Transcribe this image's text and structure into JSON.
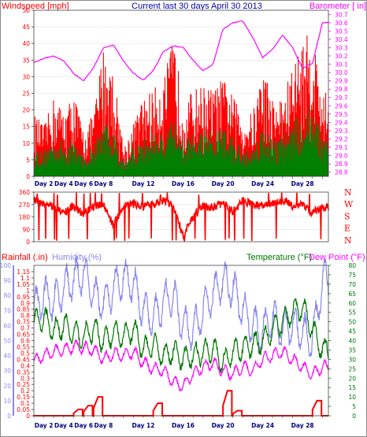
{
  "colors": {
    "background": "#ffffff",
    "wind_max": "#ff0000",
    "wind_avg_outline": "#3a4aa0",
    "wind_avg": "#008000",
    "barometer": "#ff00ff",
    "direction": "#ff0000",
    "rainfall": "#ff0000",
    "humidity": "#8888ee",
    "temperature": "#007700",
    "dewpoint": "#ff00ff",
    "date_labels": "#000080",
    "title": "#0000aa"
  },
  "top": {
    "title": "Current last 30 days April 30 2013",
    "left_label": "Windspeed [mph]",
    "right_label": "Barometer [ in]",
    "left_ticks": [
      "0",
      "5",
      "10",
      "15",
      "20",
      "25",
      "30",
      "35",
      "40",
      "45",
      "50"
    ],
    "right_ticks": [
      "28.8",
      "28.9",
      "29.0",
      "29.1",
      "29.2",
      "29.3",
      "29.4",
      "29.5",
      "29.6",
      "29.7",
      "29.8",
      "29.9",
      "30.0",
      "30.1",
      "30.2",
      "30.3",
      "30.4",
      "30.5",
      "30.6",
      "30.7"
    ]
  },
  "mid": {
    "left_ticks": [
      "0",
      "90",
      "180",
      "270",
      "360"
    ],
    "right_labels": [
      "N",
      "W",
      "S",
      "E",
      "N"
    ]
  },
  "bottom": {
    "rain_label": "Rainfall (.in)",
    "humidity_label": "Humidity (%)",
    "temp_label": "Temperature (°F)",
    "dew_label": "Dew Point (°F)",
    "humidity_ticks": [
      "0",
      "10",
      "20",
      "30",
      "40",
      "50",
      "60",
      "70",
      "80",
      "90",
      "100"
    ],
    "rain_ticks": [
      "0",
      "0.05",
      "0.1",
      "0.15",
      "0.2",
      "0.25",
      "0.3",
      "0.35",
      "0.4",
      "0.45",
      "0.5",
      "0.55",
      "0.6",
      "0.65",
      "0.7",
      "0.75",
      "0.8",
      "0.85",
      "0.9",
      "0.95",
      "1",
      "1.05",
      "1.1",
      "1.15"
    ],
    "temp_ticks": [
      "0",
      "5",
      "10",
      "15",
      "20",
      "25",
      "30",
      "35",
      "40",
      "45",
      "50",
      "55",
      "60",
      "65",
      "70",
      "75",
      "80"
    ]
  },
  "x_labels": [
    "Day 2",
    "Day 4",
    "Day 6",
    "Day 8",
    "Day 12",
    "Day 16",
    "Day 20",
    "Day 24",
    "Day 28"
  ],
  "chart_data": [
    {
      "type": "bar",
      "title": "Current last 30 days April 30 2013",
      "ylabel": "Windspeed [mph]",
      "y2label": "Barometer [ in]",
      "ylim": [
        0,
        50
      ],
      "y2lim": [
        28.75,
        30.75
      ],
      "x": [
        1,
        2,
        3,
        4,
        5,
        6,
        7,
        8,
        9,
        10,
        11,
        12,
        13,
        14,
        15,
        16,
        17,
        18,
        19,
        20,
        21,
        22,
        23,
        24,
        25,
        26,
        27,
        28,
        29,
        30
      ],
      "series": [
        {
          "values": [
            17,
            14,
            22,
            18,
            23,
            12,
            18,
            37,
            28,
            8,
            15,
            22,
            24,
            27,
            38,
            20,
            24,
            25,
            24,
            27,
            22,
            16,
            18,
            31,
            21,
            22,
            31,
            38,
            40,
            23
          ]
        },
        {
          "values": [
            7,
            6,
            10,
            8,
            9,
            5,
            8,
            14,
            11,
            4,
            7,
            9,
            11,
            12,
            16,
            9,
            10,
            12,
            11,
            12,
            9,
            7,
            8,
            13,
            9,
            10,
            13,
            16,
            18,
            10
          ]
        },
        {
          "values": [
            30.12,
            30.17,
            30.2,
            30.14,
            29.99,
            29.9,
            30.06,
            30.3,
            30.33,
            30.14,
            29.99,
            29.91,
            30.02,
            30.25,
            30.32,
            30.3,
            30.15,
            30.02,
            30.1,
            30.52,
            30.6,
            30.62,
            30.42,
            30.18,
            30.28,
            30.45,
            30.3,
            30.05,
            30.11,
            30.6
          ]
        }
      ]
    },
    {
      "type": "line",
      "ylabel": "Wind direction",
      "ylim": [
        0,
        360
      ],
      "x": [
        1,
        2,
        3,
        4,
        5,
        6,
        7,
        8,
        9,
        10,
        11,
        12,
        13,
        14,
        15,
        16,
        17,
        18,
        19,
        20,
        21,
        22,
        23,
        24,
        25,
        26,
        27,
        28,
        29,
        30
      ],
      "series": [
        {
          "values": [
            300,
            280,
            250,
            210,
            260,
            200,
            255,
            270,
            120,
            260,
            280,
            250,
            270,
            300,
            260,
            40,
            180,
            260,
            250,
            280,
            220,
            300,
            270,
            260,
            280,
            300,
            260,
            270,
            210,
            250
          ]
        }
      ]
    },
    {
      "type": "line",
      "ylabel": "Humidity (%)",
      "ylim": [
        0,
        100
      ],
      "y2label": "Temperature (°F)",
      "y2lim": [
        0,
        80
      ],
      "x": [
        1,
        2,
        3,
        4,
        5,
        6,
        7,
        8,
        9,
        10,
        11,
        12,
        13,
        14,
        15,
        16,
        17,
        18,
        19,
        20,
        21,
        22,
        23,
        24,
        25,
        26,
        27,
        28,
        29,
        30
      ],
      "series": [
        {
          "name": "Rainfall (.in)",
          "values": [
            0,
            0,
            0,
            0,
            0.05,
            0.08,
            0.15,
            0,
            0,
            0,
            0,
            0,
            0.1,
            0,
            0,
            0,
            0,
            0,
            0,
            0.2,
            0.04,
            0,
            0,
            0,
            0,
            0,
            0,
            0,
            0.12,
            0
          ]
        },
        {
          "name": "Humidity (%)",
          "values": [
            70,
            80,
            75,
            85,
            90,
            95,
            80,
            75,
            85,
            92,
            88,
            70,
            65,
            75,
            80,
            60,
            55,
            70,
            80,
            90,
            85,
            70,
            60,
            55,
            65,
            58,
            60,
            55,
            50,
            90
          ]
        },
        {
          "name": "Temperature (°F)",
          "values": [
            50,
            52,
            45,
            48,
            44,
            42,
            46,
            40,
            44,
            42,
            46,
            35,
            38,
            32,
            34,
            30,
            32,
            34,
            36,
            28,
            34,
            36,
            38,
            40,
            46,
            50,
            55,
            58,
            46,
            35
          ]
        },
        {
          "name": "Dew Point (°F)",
          "values": [
            29,
            32,
            34,
            35,
            37,
            36,
            35,
            30,
            33,
            32,
            34,
            28,
            25,
            24,
            18,
            16,
            22,
            26,
            28,
            24,
            22,
            26,
            24,
            30,
            32,
            34,
            30,
            26,
            22,
            26
          ]
        }
      ]
    }
  ]
}
